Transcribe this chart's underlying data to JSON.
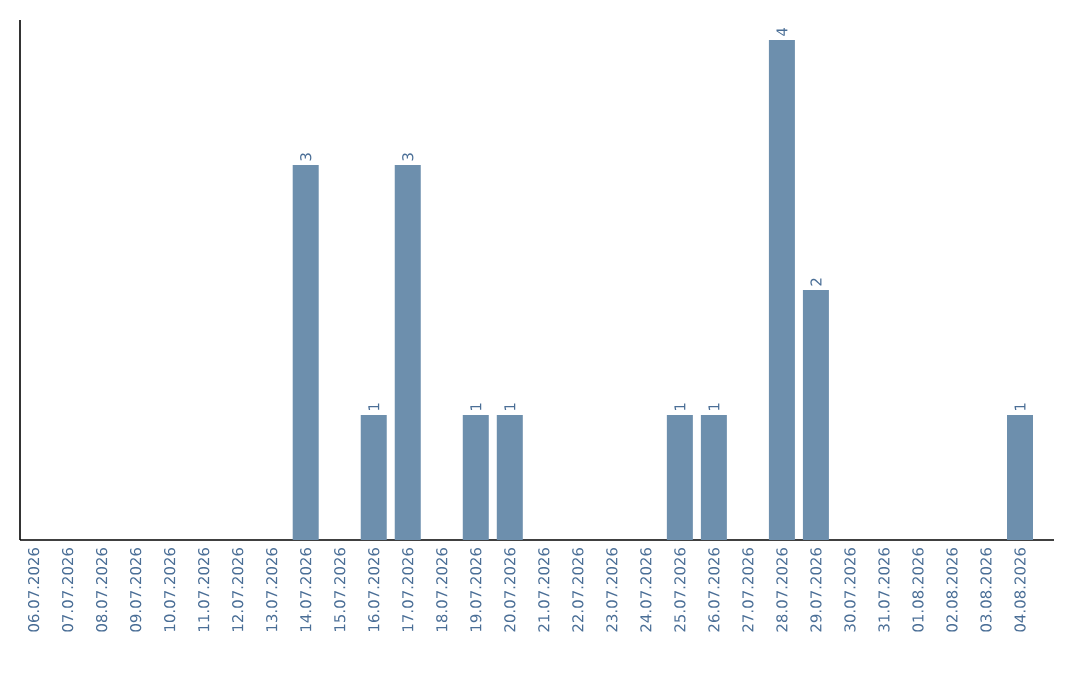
{
  "chart_data": {
    "type": "bar",
    "categories": [
      "06.07.2026",
      "07.07.2026",
      "08.07.2026",
      "09.07.2026",
      "10.07.2026",
      "11.07.2026",
      "12.07.2026",
      "13.07.2026",
      "14.07.2026",
      "15.07.2026",
      "16.07.2026",
      "17.07.2026",
      "18.07.2026",
      "19.07.2026",
      "20.07.2026",
      "21.07.2026",
      "22.07.2026",
      "23.07.2026",
      "24.07.2026",
      "25.07.2026",
      "26.07.2026",
      "27.07.2026",
      "28.07.2026",
      "29.07.2026",
      "30.07.2026",
      "31.07.2026",
      "01.08.2026",
      "02.08.2026",
      "03.08.2026",
      "04.08.2026"
    ],
    "values": [
      0,
      0,
      0,
      0,
      0,
      0,
      0,
      0,
      3,
      0,
      1,
      3,
      0,
      1,
      1,
      0,
      0,
      0,
      0,
      1,
      1,
      0,
      4,
      2,
      0,
      0,
      0,
      0,
      0,
      1
    ],
    "value_labels": [
      null,
      null,
      null,
      null,
      null,
      null,
      null,
      null,
      "3",
      null,
      "1",
      "3",
      null,
      "1",
      "1",
      null,
      null,
      null,
      null,
      "1",
      "1",
      null,
      "4",
      "2",
      null,
      null,
      null,
      null,
      null,
      "1"
    ],
    "color": "#6d8fad"
  }
}
